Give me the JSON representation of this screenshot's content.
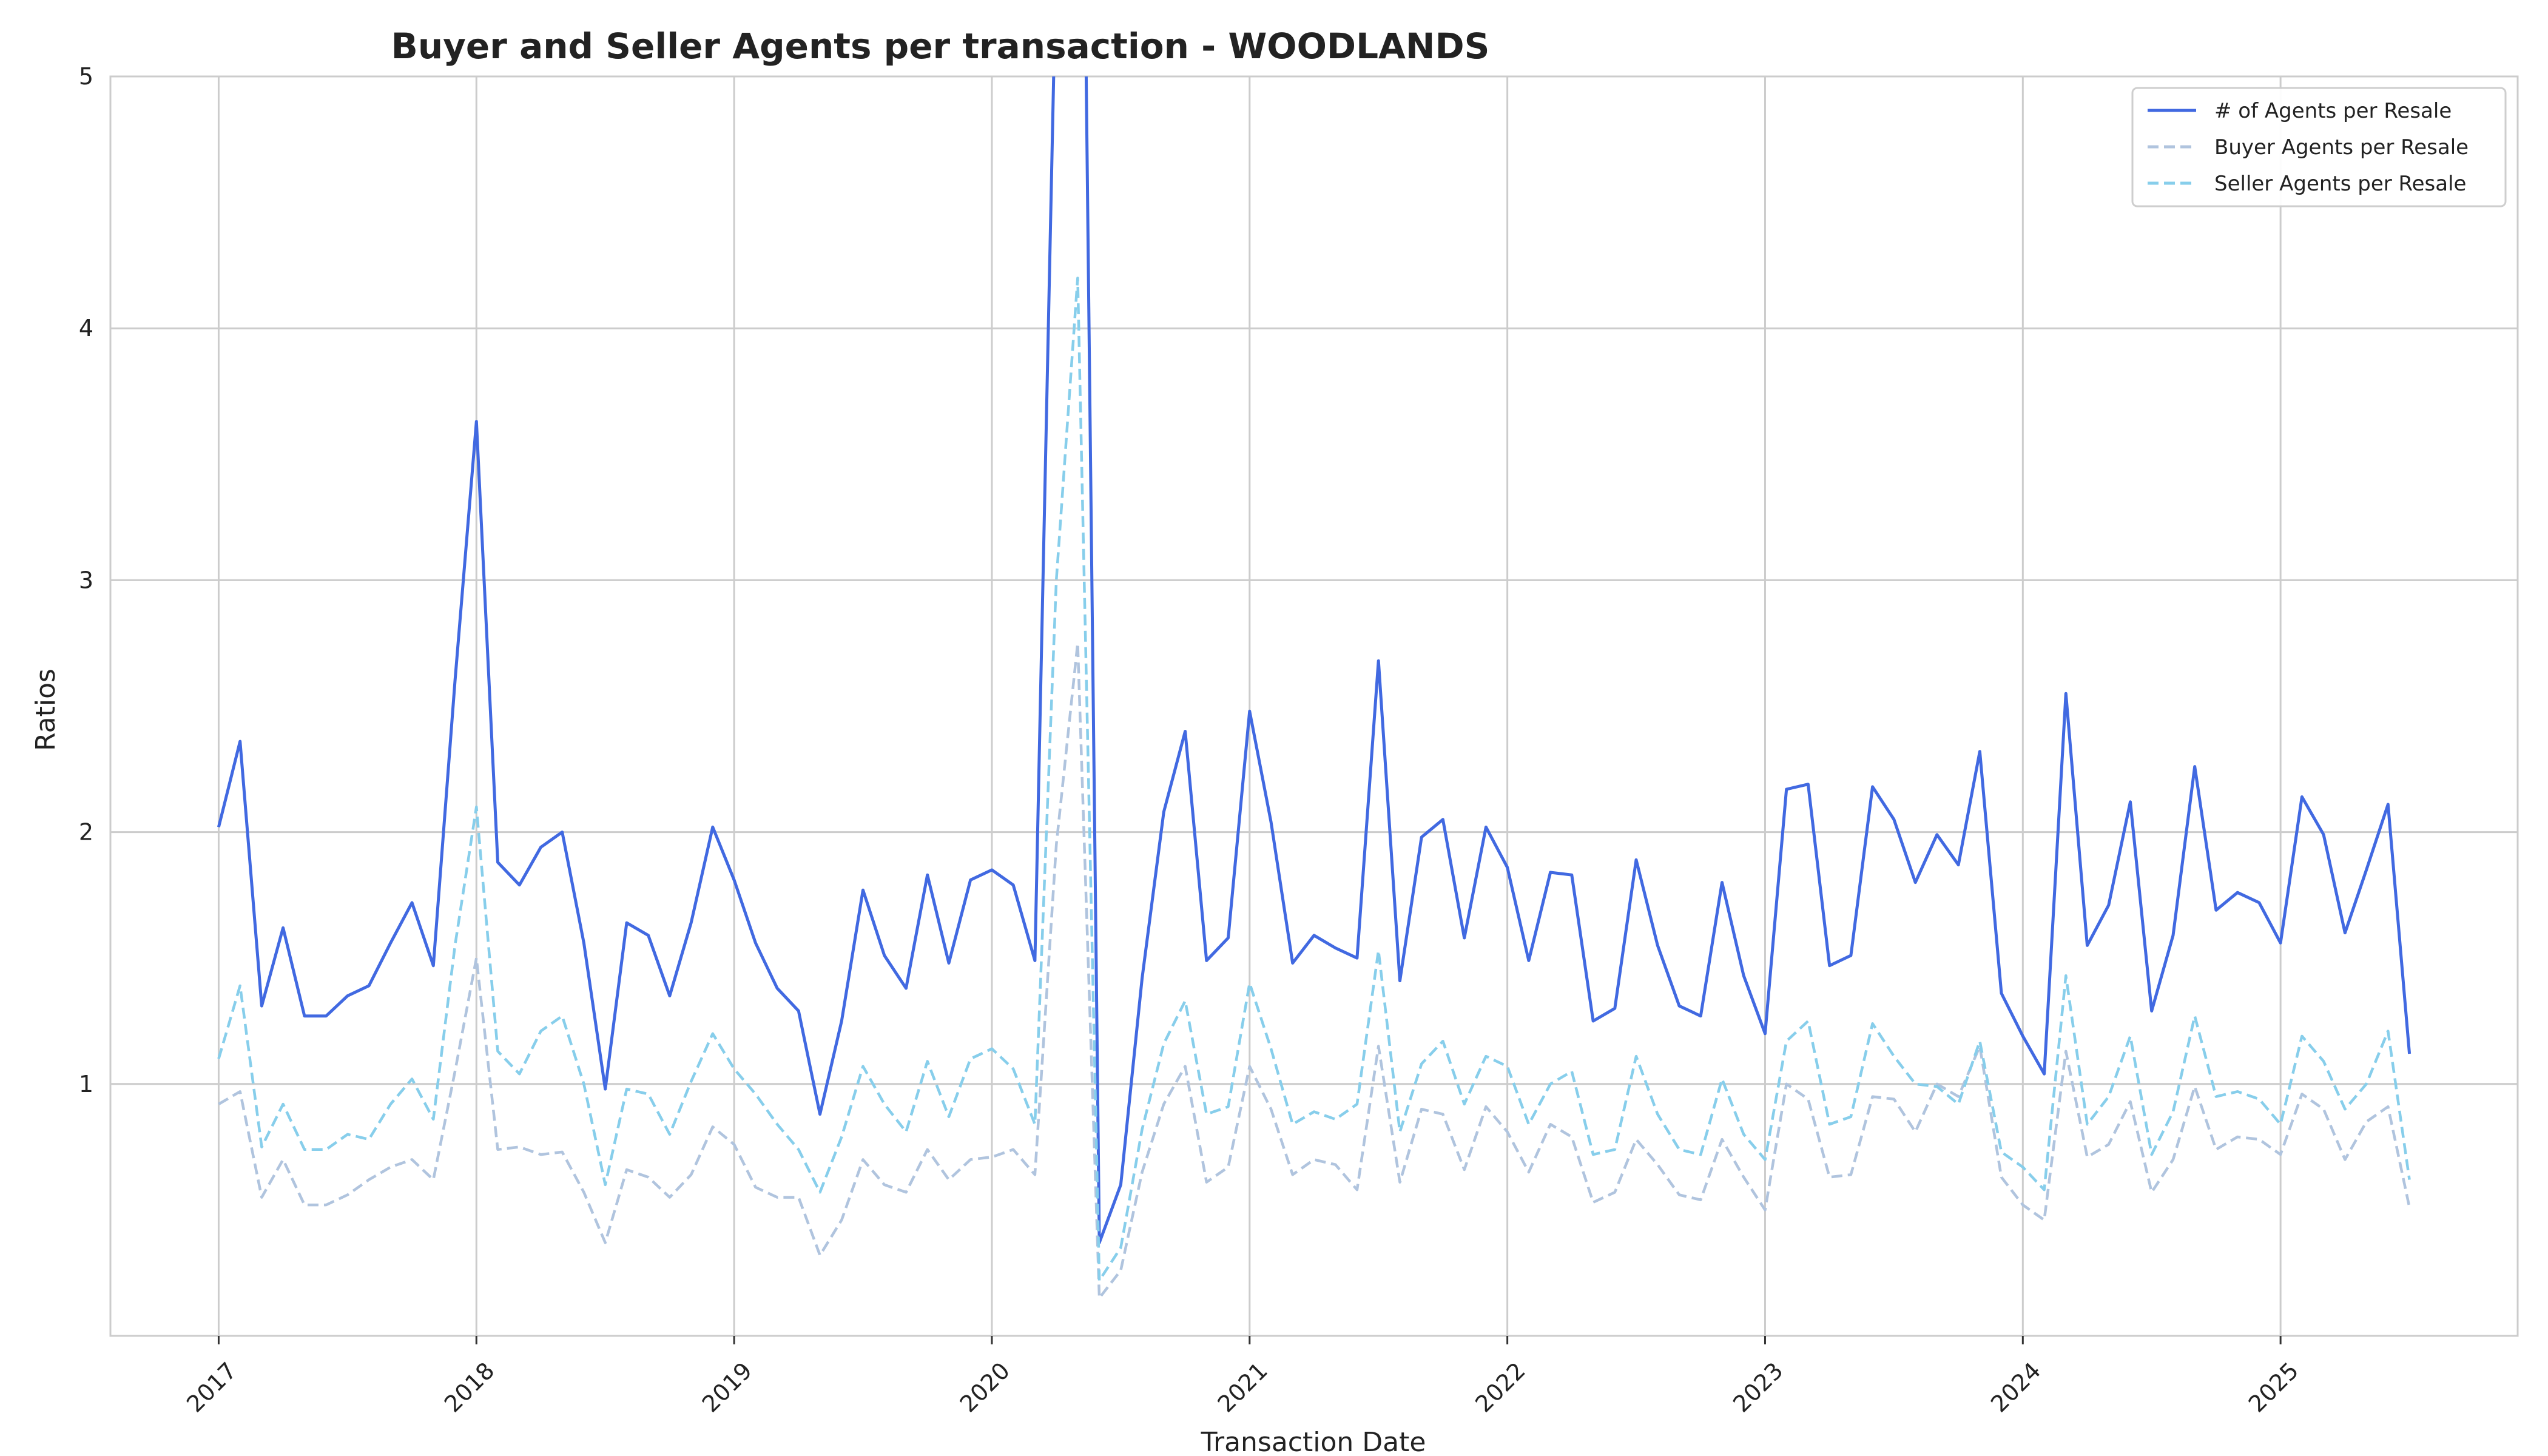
{
  "chart_data": {
    "type": "line",
    "title": "Buyer and Seller Agents per transaction - WOODLANDS",
    "xlabel": "Transaction Date",
    "ylabel": "Ratios",
    "xlim": [
      2016.58,
      2025.92
    ],
    "ylim": [
      0,
      5
    ],
    "xticks": [
      2017,
      2018,
      2019,
      2020,
      2021,
      2022,
      2023,
      2024,
      2025
    ],
    "xtick_labels": [
      "2017",
      "2018",
      "2019",
      "2020",
      "2021",
      "2022",
      "2023",
      "2024",
      "2025"
    ],
    "yticks": [
      1,
      2,
      3,
      4,
      5
    ],
    "ytick_labels": [
      "1",
      "2",
      "3",
      "4",
      "5"
    ],
    "grid": true,
    "legend_position": "top-right",
    "x": [
      2017.0,
      2017.083,
      2017.167,
      2017.25,
      2017.333,
      2017.417,
      2017.5,
      2017.583,
      2017.667,
      2017.75,
      2017.833,
      2017.917,
      2018.0,
      2018.083,
      2018.167,
      2018.25,
      2018.333,
      2018.417,
      2018.5,
      2018.583,
      2018.667,
      2018.75,
      2018.833,
      2018.917,
      2019.0,
      2019.083,
      2019.167,
      2019.25,
      2019.333,
      2019.417,
      2019.5,
      2019.583,
      2019.667,
      2019.75,
      2019.833,
      2019.917,
      2020.0,
      2020.083,
      2020.167,
      2020.25,
      2020.333,
      2020.417,
      2020.5,
      2020.583,
      2020.667,
      2020.75,
      2020.833,
      2020.917,
      2021.0,
      2021.083,
      2021.167,
      2021.25,
      2021.333,
      2021.417,
      2021.5,
      2021.583,
      2021.667,
      2021.75,
      2021.833,
      2021.917,
      2022.0,
      2022.083,
      2022.167,
      2022.25,
      2022.333,
      2022.417,
      2022.5,
      2022.583,
      2022.667,
      2022.75,
      2022.833,
      2022.917,
      2023.0,
      2023.083,
      2023.167,
      2023.25,
      2023.333,
      2023.417,
      2023.5,
      2023.583,
      2023.667,
      2023.75,
      2023.833,
      2023.917,
      2024.0,
      2024.083,
      2024.167,
      2024.25,
      2024.333,
      2024.417,
      2024.5,
      2024.583,
      2024.667,
      2024.75,
      2024.833,
      2024.917,
      2025.0,
      2025.083,
      2025.167,
      2025.25,
      2025.333,
      2025.417,
      2025.5
    ],
    "series": [
      {
        "name": "# of Agents per Resale",
        "color": "#4169e1",
        "dash": "solid",
        "values": [
          2.02,
          2.36,
          1.31,
          1.62,
          1.27,
          1.27,
          1.35,
          1.39,
          1.56,
          1.72,
          1.47,
          2.6,
          3.63,
          1.88,
          1.79,
          1.94,
          2.0,
          1.56,
          0.98,
          1.64,
          1.59,
          1.35,
          1.64,
          2.02,
          1.81,
          1.56,
          1.38,
          1.29,
          0.88,
          1.25,
          1.77,
          1.51,
          1.38,
          1.83,
          1.48,
          1.81,
          1.85,
          1.79,
          1.49,
          5.5,
          8.0,
          0.37,
          0.6,
          1.42,
          2.08,
          2.4,
          1.49,
          1.58,
          2.48,
          2.04,
          1.48,
          1.59,
          1.54,
          1.5,
          2.68,
          1.41,
          1.98,
          2.05,
          1.58,
          2.02,
          1.86,
          1.49,
          1.84,
          1.83,
          1.25,
          1.3,
          1.89,
          1.55,
          1.31,
          1.27,
          1.8,
          1.43,
          1.2,
          2.17,
          2.19,
          1.47,
          1.51,
          2.18,
          2.05,
          1.8,
          1.99,
          1.87,
          2.32,
          1.36,
          1.19,
          1.04,
          2.55,
          1.55,
          1.71,
          2.12,
          1.29,
          1.59,
          2.26,
          1.69,
          1.76,
          1.72,
          1.56,
          2.14,
          1.99,
          1.6,
          1.85,
          2.11,
          1.12
        ]
      },
      {
        "name": "Buyer Agents per Resale",
        "color": "#b0c4de",
        "dash": "dashed",
        "values": [
          0.92,
          0.97,
          0.55,
          0.7,
          0.52,
          0.52,
          0.56,
          0.62,
          0.67,
          0.7,
          0.62,
          1.05,
          1.5,
          0.74,
          0.75,
          0.72,
          0.73,
          0.57,
          0.37,
          0.66,
          0.63,
          0.55,
          0.64,
          0.83,
          0.76,
          0.59,
          0.55,
          0.55,
          0.32,
          0.46,
          0.7,
          0.6,
          0.57,
          0.74,
          0.62,
          0.7,
          0.71,
          0.74,
          0.64,
          1.95,
          2.75,
          0.15,
          0.26,
          0.65,
          0.92,
          1.07,
          0.61,
          0.67,
          1.07,
          0.9,
          0.64,
          0.7,
          0.68,
          0.58,
          1.15,
          0.61,
          0.9,
          0.88,
          0.66,
          0.91,
          0.81,
          0.65,
          0.84,
          0.79,
          0.53,
          0.57,
          0.78,
          0.68,
          0.56,
          0.54,
          0.78,
          0.63,
          0.5,
          1.0,
          0.94,
          0.63,
          0.64,
          0.95,
          0.94,
          0.81,
          1.0,
          0.95,
          1.15,
          0.63,
          0.52,
          0.46,
          1.13,
          0.71,
          0.76,
          0.93,
          0.57,
          0.7,
          0.99,
          0.74,
          0.79,
          0.78,
          0.72,
          0.96,
          0.9,
          0.7,
          0.85,
          0.91,
          0.51
        ]
      },
      {
        "name": "Seller Agents per Resale",
        "color": "#87ceeb",
        "dash": "dashed",
        "values": [
          1.1,
          1.39,
          0.75,
          0.92,
          0.74,
          0.74,
          0.8,
          0.78,
          0.92,
          1.02,
          0.86,
          1.55,
          2.1,
          1.13,
          1.04,
          1.21,
          1.27,
          1.0,
          0.6,
          0.98,
          0.96,
          0.8,
          1.01,
          1.2,
          1.06,
          0.96,
          0.84,
          0.74,
          0.57,
          0.79,
          1.07,
          0.92,
          0.81,
          1.09,
          0.87,
          1.1,
          1.14,
          1.06,
          0.84,
          3.0,
          4.2,
          0.22,
          0.35,
          0.82,
          1.16,
          1.33,
          0.88,
          0.91,
          1.4,
          1.14,
          0.84,
          0.89,
          0.86,
          0.92,
          1.53,
          0.81,
          1.08,
          1.17,
          0.92,
          1.11,
          1.07,
          0.84,
          1.0,
          1.05,
          0.72,
          0.74,
          1.11,
          0.88,
          0.74,
          0.72,
          1.02,
          0.8,
          0.7,
          1.17,
          1.25,
          0.84,
          0.87,
          1.24,
          1.11,
          1.0,
          0.99,
          0.92,
          1.17,
          0.73,
          0.67,
          0.58,
          1.43,
          0.84,
          0.95,
          1.19,
          0.72,
          0.89,
          1.27,
          0.95,
          0.97,
          0.94,
          0.84,
          1.19,
          1.09,
          0.9,
          1.0,
          1.21,
          0.62
        ]
      }
    ]
  }
}
